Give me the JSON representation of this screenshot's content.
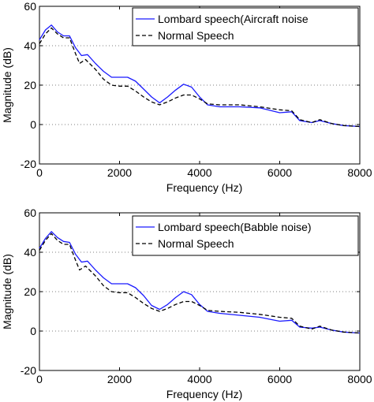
{
  "chart_data": [
    {
      "type": "line",
      "xlabel": "Frequency (Hz)",
      "ylabel": "Magnitude (dB)",
      "xlim": [
        0,
        8000
      ],
      "ylim": [
        -20,
        60
      ],
      "xticks": [
        0,
        2000,
        4000,
        6000,
        8000
      ],
      "yticks": [
        -20,
        0,
        20,
        40,
        60
      ],
      "xtick_labels": [
        "0",
        "2000",
        "4000",
        "6000",
        "8000"
      ],
      "ytick_labels": [
        "-20",
        "0",
        "20",
        "40",
        "60"
      ],
      "grid": "dotted horizontal at 0, 20, 40",
      "legend_position": "top-right",
      "series": [
        {
          "name": "Lombard speech(Aircraft noise",
          "color": "#1a1aff",
          "style": "solid",
          "points": [
            [
              0,
              43
            ],
            [
              150,
              48
            ],
            [
              300,
              50.5
            ],
            [
              450,
              47
            ],
            [
              600,
              45
            ],
            [
              750,
              45
            ],
            [
              900,
              39
            ],
            [
              1050,
              35
            ],
            [
              1200,
              35.5
            ],
            [
              1400,
              31
            ],
            [
              1600,
              27
            ],
            [
              1800,
              24
            ],
            [
              2000,
              24
            ],
            [
              2200,
              24
            ],
            [
              2400,
              22
            ],
            [
              2600,
              18
            ],
            [
              2800,
              14
            ],
            [
              3000,
              11
            ],
            [
              3200,
              14
            ],
            [
              3400,
              17.5
            ],
            [
              3600,
              20.5
            ],
            [
              3800,
              19
            ],
            [
              4000,
              14
            ],
            [
              4200,
              10
            ],
            [
              4500,
              9
            ],
            [
              5000,
              9
            ],
            [
              5500,
              8.5
            ],
            [
              6000,
              6
            ],
            [
              6300,
              6.5
            ],
            [
              6500,
              2
            ],
            [
              6800,
              1
            ],
            [
              7000,
              2
            ],
            [
              7300,
              0.5
            ],
            [
              7600,
              -0.5
            ],
            [
              8000,
              -1
            ]
          ]
        },
        {
          "name": "Normal Speech",
          "color": "#000000",
          "style": "dashed",
          "points": [
            [
              0,
              41
            ],
            [
              150,
              46
            ],
            [
              300,
              49
            ],
            [
              450,
              46
            ],
            [
              600,
              44
            ],
            [
              750,
              44
            ],
            [
              900,
              36
            ],
            [
              1000,
              31
            ],
            [
              1150,
              33
            ],
            [
              1400,
              28
            ],
            [
              1600,
              23
            ],
            [
              1800,
              20
            ],
            [
              2000,
              19.5
            ],
            [
              2200,
              19.5
            ],
            [
              2400,
              17
            ],
            [
              2600,
              14
            ],
            [
              2800,
              11.5
            ],
            [
              3000,
              10
            ],
            [
              3200,
              11.5
            ],
            [
              3400,
              13.5
            ],
            [
              3600,
              15
            ],
            [
              3800,
              15
            ],
            [
              4000,
              13
            ],
            [
              4200,
              10.5
            ],
            [
              4500,
              10
            ],
            [
              5000,
              10
            ],
            [
              5500,
              9
            ],
            [
              6000,
              7.5
            ],
            [
              6300,
              7
            ],
            [
              6500,
              2.5
            ],
            [
              6800,
              1
            ],
            [
              7000,
              2.5
            ],
            [
              7300,
              0.5
            ],
            [
              7600,
              -0.5
            ],
            [
              8000,
              -1
            ]
          ]
        }
      ]
    },
    {
      "type": "line",
      "xlabel": "Frequency (Hz)",
      "ylabel": "Magnitude (dB)",
      "xlim": [
        0,
        8000
      ],
      "ylim": [
        -20,
        60
      ],
      "xticks": [
        0,
        2000,
        4000,
        6000,
        8000
      ],
      "yticks": [
        -20,
        0,
        20,
        40,
        60
      ],
      "xtick_labels": [
        "0",
        "2000",
        "4000",
        "6000",
        "8000"
      ],
      "ytick_labels": [
        "-20",
        "0",
        "20",
        "40",
        "60"
      ],
      "grid": "dotted horizontal at 0, 20, 40",
      "legend_position": "top-right",
      "series": [
        {
          "name": "Lombard speech(Babble noise)",
          "color": "#1a1aff",
          "style": "solid",
          "points": [
            [
              0,
              42
            ],
            [
              150,
              47
            ],
            [
              300,
              50.5
            ],
            [
              450,
              47.5
            ],
            [
              600,
              45.5
            ],
            [
              750,
              45
            ],
            [
              900,
              39
            ],
            [
              1050,
              35
            ],
            [
              1200,
              35.5
            ],
            [
              1400,
              31
            ],
            [
              1600,
              27
            ],
            [
              1800,
              24
            ],
            [
              2000,
              24
            ],
            [
              2200,
              24
            ],
            [
              2400,
              22
            ],
            [
              2600,
              18
            ],
            [
              2800,
              13
            ],
            [
              3000,
              11
            ],
            [
              3200,
              13.5
            ],
            [
              3400,
              17
            ],
            [
              3600,
              20
            ],
            [
              3800,
              18.5
            ],
            [
              4000,
              13.5
            ],
            [
              4200,
              10
            ],
            [
              4500,
              9
            ],
            [
              5000,
              8
            ],
            [
              5500,
              7
            ],
            [
              6000,
              5
            ],
            [
              6300,
              5.5
            ],
            [
              6500,
              2
            ],
            [
              6800,
              1.5
            ],
            [
              7000,
              2
            ],
            [
              7300,
              0.5
            ],
            [
              7600,
              -0.5
            ],
            [
              8000,
              -1
            ]
          ]
        },
        {
          "name": "Normal Speech",
          "color": "#000000",
          "style": "dashed",
          "points": [
            [
              0,
              41
            ],
            [
              150,
              46
            ],
            [
              300,
              49.5
            ],
            [
              450,
              46
            ],
            [
              600,
              44
            ],
            [
              750,
              44
            ],
            [
              900,
              36
            ],
            [
              1000,
              31
            ],
            [
              1150,
              33
            ],
            [
              1400,
              28
            ],
            [
              1600,
              23
            ],
            [
              1800,
              20
            ],
            [
              2000,
              19.5
            ],
            [
              2200,
              19.5
            ],
            [
              2400,
              17
            ],
            [
              2600,
              14
            ],
            [
              2800,
              11.5
            ],
            [
              3000,
              10
            ],
            [
              3200,
              11.5
            ],
            [
              3400,
              13.5
            ],
            [
              3600,
              15
            ],
            [
              3800,
              15
            ],
            [
              4000,
              13
            ],
            [
              4200,
              10.5
            ],
            [
              4500,
              10
            ],
            [
              5000,
              9.5
            ],
            [
              5500,
              8.5
            ],
            [
              6000,
              7
            ],
            [
              6300,
              6.5
            ],
            [
              6500,
              2.5
            ],
            [
              6800,
              1
            ],
            [
              7000,
              2.5
            ],
            [
              7300,
              0.5
            ],
            [
              7600,
              -0.5
            ],
            [
              8000,
              -1
            ]
          ]
        }
      ]
    }
  ]
}
